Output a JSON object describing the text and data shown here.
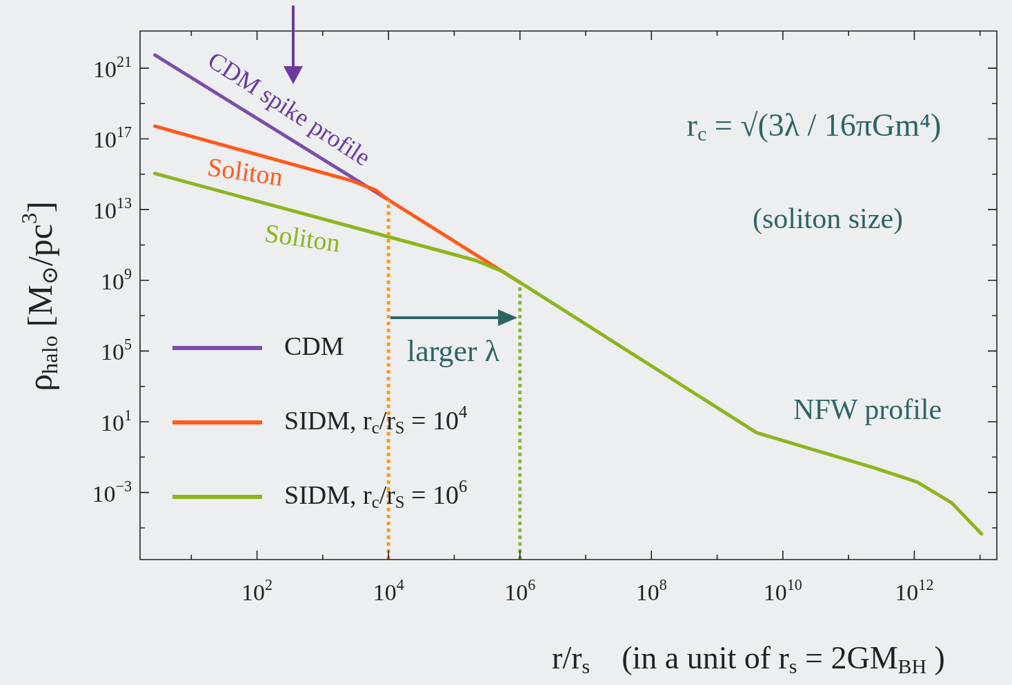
{
  "chart_data": {
    "type": "line",
    "xlabel": "r/r$_{s}$    (in a unit of r$_{s}$ = 2GM$_{BH}$ )",
    "ylabel": "ρ$_{halo}$ [M$_{⊙}$/pc$^{3}$]",
    "log": "xy",
    "grid": false,
    "legend": "center left",
    "marker": "none",
    "xlim": [
      1.66,
      18000000000000.0
    ],
    "ylim": [
      1.6e-07,
      1.26e+23
    ],
    "xticks": [
      {
        "value": 10,
        "label": null
      },
      {
        "value": 100,
        "label": "10$^{2}$"
      },
      {
        "value": 1000,
        "label": null
      },
      {
        "value": 10000.0,
        "label": "10$^{4}$"
      },
      {
        "value": 100000.0,
        "label": null
      },
      {
        "value": 1000000.0,
        "label": "10$^{6}$"
      },
      {
        "value": 10000000.0,
        "label": null
      },
      {
        "value": 100000000.0,
        "label": "10$^{8}$"
      },
      {
        "value": 1000000000.0,
        "label": null
      },
      {
        "value": 10000000000.0,
        "label": "10$^{10}$"
      },
      {
        "value": 100000000000.0,
        "label": null
      },
      {
        "value": 1000000000000.0,
        "label": "10$^{12}$"
      },
      {
        "value": 10000000000000.0,
        "label": null
      }
    ],
    "yticks": [
      {
        "value": 1e-05,
        "label": null
      },
      {
        "value": 0.001,
        "label": "10$^{−3}$"
      },
      {
        "value": 0.1,
        "label": null
      },
      {
        "value": 10,
        "label": "10$^{1}$"
      },
      {
        "value": 1000,
        "label": null
      },
      {
        "value": 100000.0,
        "label": "10$^{5}$"
      },
      {
        "value": 10000000.0,
        "label": null
      },
      {
        "value": 1000000000.0,
        "label": "10$^{9}$"
      },
      {
        "value": 100000000000.0,
        "label": null
      },
      {
        "value": 10000000000000.0,
        "label": "10$^{13}$"
      },
      {
        "value": 1000000000000000.0,
        "label": null
      },
      {
        "value": 1e+17,
        "label": "10$^{17}$"
      },
      {
        "value": 1e+19,
        "label": null
      },
      {
        "value": 1e+21,
        "label": "10$^{21}$"
      }
    ],
    "series": [
      {
        "name": "CDM",
        "color": "#7b4ea8",
        "x": [
          2.8,
          10000.0
        ],
        "values": [
          5.5e+21,
          35000000000000.0
        ]
      },
      {
        "name": "SIDM, r$_{c}$/r$_{S}$ = 10$^{4}$",
        "color": "#ff5a1a",
        "x": [
          2.8,
          2750,
          6300,
          10000.0,
          1000000.0
        ],
        "values": [
          5.2e+17,
          430000000000000.0,
          130000000000000.0,
          35000000000000.0,
          760000000.0
        ]
      },
      {
        "name": "SIDM, r$_{c}$/r$_{S}$ = 10$^{6}$",
        "color": "#8db51e",
        "x": [
          2.8,
          210000.0,
          560000.0,
          1000000.0,
          3980000000.0,
          260000000000.0,
          1100000000000.0,
          3700000000000.0,
          10500000000000.0
        ],
        "values": [
          1100000000000000.0,
          13500000000.0,
          3000000000.0,
          760000000.0,
          2.4,
          0.023,
          0.0039,
          0.00026,
          4.6e-06
        ]
      },
      {
        "color": "#ff9a1a",
        "line_style": "dotted",
        "x": [
          10000.0,
          10000.0
        ],
        "values": [
          1.6e-07,
          35000000000000.0
        ]
      },
      {
        "color": "#8db53a",
        "line_style": "dotted",
        "x": [
          1000000.0,
          1000000.0
        ],
        "values": [
          1.6e-07,
          760000000.0
        ]
      }
    ],
    "annotations": [
      "CDM spike profile",
      "Soliton",
      "Soliton",
      "larger λ",
      "NFW profile",
      "r$_{c}$ = √(3λ / 16πGm⁴)",
      "(soliton size)"
    ]
  }
}
